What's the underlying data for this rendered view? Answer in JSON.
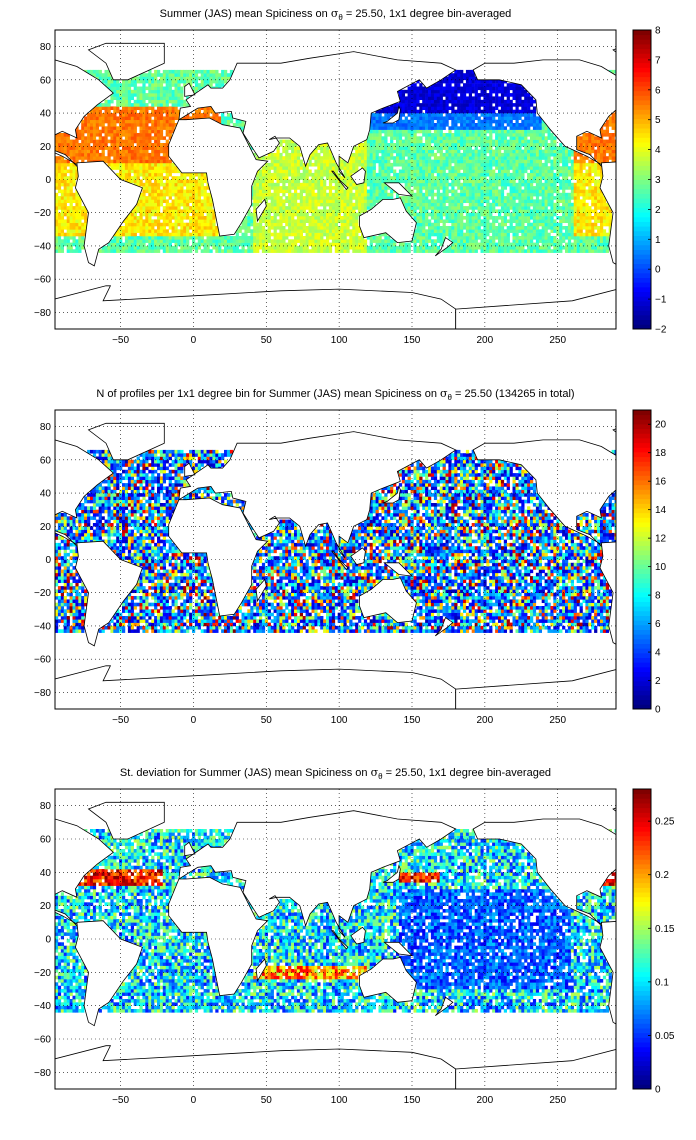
{
  "chart_data": [
    {
      "type": "heatmap",
      "title_pre": "Summer (JAS) mean Spiciness on ",
      "title_sym": "σ",
      "title_sub": "θ",
      "title_post": " = 25.50, 1x1 degree bin-averaged",
      "xlabel": "",
      "ylabel": "",
      "xlim": [
        -95,
        290
      ],
      "ylim": [
        -90,
        90
      ],
      "xticks": [
        -50,
        0,
        50,
        100,
        150,
        200,
        250
      ],
      "yticks": [
        -80,
        -60,
        -40,
        -20,
        0,
        20,
        40,
        60,
        80
      ],
      "grid": true,
      "colormap": "jet",
      "clim": [
        -2,
        8
      ],
      "colorbar_ticks": [
        -2,
        -1,
        0,
        1,
        2,
        3,
        4,
        5,
        6,
        7,
        8
      ],
      "field": "mean"
    },
    {
      "type": "heatmap",
      "title_pre": "N of profiles per 1x1 degree bin for Summer (JAS) mean Spiciness on ",
      "title_sym": "σ",
      "title_sub": "θ",
      "title_post": " = 25.50 (134265 in total)",
      "xlabel": "",
      "ylabel": "",
      "xlim": [
        -95,
        290
      ],
      "ylim": [
        -90,
        90
      ],
      "xticks": [
        -50,
        0,
        50,
        100,
        150,
        200,
        250
      ],
      "yticks": [
        -80,
        -60,
        -40,
        -20,
        0,
        20,
        40,
        60,
        80
      ],
      "grid": true,
      "colormap": "jet",
      "clim": [
        0,
        21
      ],
      "colorbar_ticks": [
        0,
        2,
        4,
        6,
        8,
        10,
        12,
        14,
        16,
        18,
        20
      ],
      "field": "count"
    },
    {
      "type": "heatmap",
      "title_pre": "St. deviation for Summer (JAS) mean Spiciness on ",
      "title_sym": "σ",
      "title_sub": "θ",
      "title_post": " = 25.50, 1x1 degree bin-averaged",
      "xlabel": "",
      "ylabel": "",
      "xlim": [
        -95,
        290
      ],
      "ylim": [
        -90,
        90
      ],
      "xticks": [
        -50,
        0,
        50,
        100,
        150,
        200,
        250
      ],
      "yticks": [
        -80,
        -60,
        -40,
        -20,
        0,
        20,
        40,
        60,
        80
      ],
      "grid": true,
      "colormap": "jet",
      "clim": [
        0,
        0.28
      ],
      "colorbar_ticks": [
        0,
        0.05,
        0.1,
        0.15,
        0.2,
        0.25
      ],
      "field": "std"
    }
  ]
}
